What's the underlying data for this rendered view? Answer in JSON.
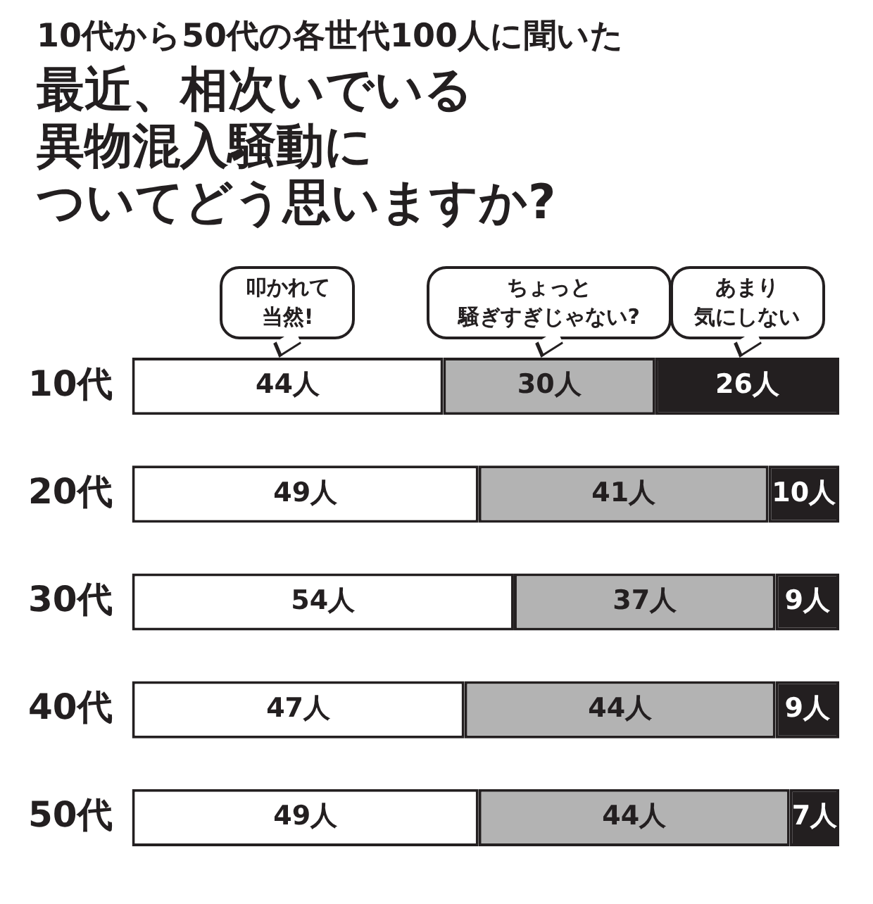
{
  "chart_data": {
    "type": "bar",
    "orientation": "horizontal",
    "stacked": true,
    "subtitle": "10代から50代の各世代100人に聞いた",
    "title": "最近、相次いでいる異物混入騒動についてどう思いますか?",
    "categories": [
      "10代",
      "20代",
      "30代",
      "40代",
      "50代"
    ],
    "series": [
      {
        "name": "叩かれて当然!",
        "color": "#ffffff",
        "values": [
          44,
          49,
          54,
          47,
          49
        ],
        "value_labels": [
          "44人",
          "49人",
          "54人",
          "47人",
          "49人"
        ]
      },
      {
        "name": "ちょっと騒ぎすぎじゃない?",
        "color": "#b3b3b3",
        "values": [
          30,
          41,
          37,
          44,
          44
        ],
        "value_labels": [
          "30人",
          "41人",
          "37人",
          "44人",
          "44人"
        ]
      },
      {
        "name": "あまり気にしない",
        "color": "#231f20",
        "values": [
          26,
          10,
          9,
          9,
          7
        ],
        "value_labels": [
          "26人",
          "10人",
          "9人",
          "9人",
          "7人"
        ]
      }
    ],
    "xlim": [
      0,
      100
    ],
    "tick_labels": "y",
    "legend": "top"
  }
}
